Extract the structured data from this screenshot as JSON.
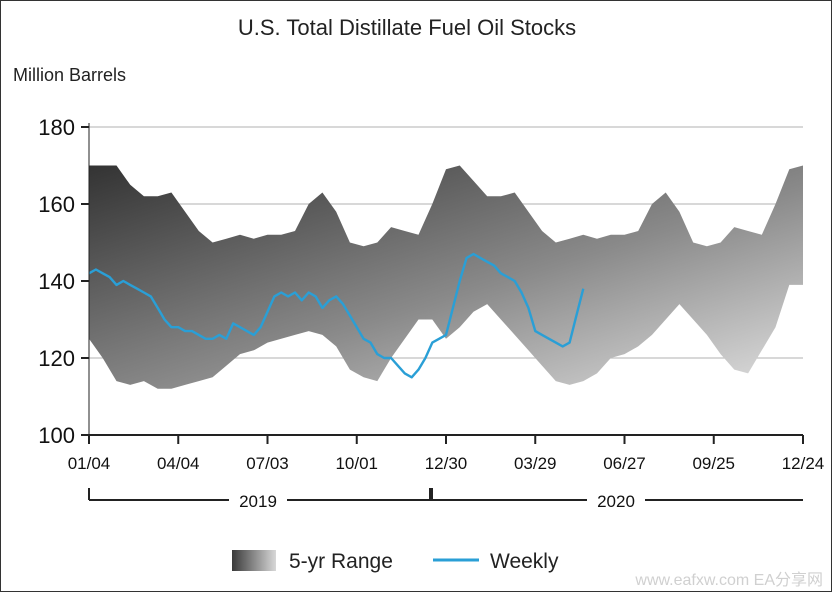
{
  "chart_data": {
    "type": "area",
    "title": "U.S. Total Distillate Fuel Oil Stocks",
    "ylabel": "Million Barrels",
    "ylim": [
      100,
      180
    ],
    "yticks": [
      "180",
      "160",
      "140",
      "120",
      "100"
    ],
    "ytick_values": [
      180,
      160,
      140,
      120,
      100
    ],
    "grid": true,
    "legend_position": "bottom",
    "x_tick_labels": [
      "01/04",
      "04/04",
      "07/03",
      "10/01",
      "12/30",
      "03/29",
      "06/27",
      "09/25",
      "12/24"
    ],
    "year_labels": [
      "2019",
      "2020"
    ],
    "series": [
      {
        "name": "5-yr Range",
        "kind": "range_band",
        "x_week": [
          0,
          2,
          4,
          6,
          8,
          10,
          12,
          14,
          16,
          18,
          20,
          22,
          24,
          26,
          28,
          30,
          32,
          34,
          36,
          38,
          40,
          42,
          44,
          46,
          48,
          50,
          52,
          54,
          56,
          58,
          60,
          62,
          64,
          66,
          68,
          70,
          72,
          74,
          76,
          78,
          80,
          82,
          84,
          86,
          88,
          90,
          92,
          94,
          96,
          98,
          100,
          102,
          104
        ],
        "upper": [
          170,
          170,
          170,
          165,
          162,
          162,
          163,
          158,
          153,
          150,
          151,
          152,
          151,
          152,
          152,
          153,
          160,
          163,
          158,
          150,
          149,
          150,
          154,
          153,
          152,
          160,
          169,
          170,
          166,
          162,
          162,
          163,
          158,
          153,
          150,
          151,
          152,
          151,
          152,
          152,
          153,
          160,
          163,
          158,
          150,
          149,
          150,
          154,
          153,
          152,
          160,
          169,
          170
        ],
        "lower": [
          125,
          120,
          114,
          113,
          114,
          112,
          112,
          113,
          114,
          115,
          118,
          121,
          122,
          124,
          125,
          126,
          127,
          126,
          123,
          117,
          115,
          114,
          120,
          125,
          130,
          130,
          125,
          128,
          132,
          134,
          130,
          126,
          122,
          118,
          114,
          113,
          114,
          116,
          120,
          121,
          123,
          126,
          130,
          134,
          130,
          126,
          121,
          117,
          116,
          122,
          128,
          139,
          139
        ]
      },
      {
        "name": "Weekly",
        "kind": "line",
        "color": "#2a9fd6",
        "x_week": [
          0,
          1,
          2,
          3,
          4,
          5,
          6,
          7,
          8,
          9,
          10,
          11,
          12,
          13,
          14,
          15,
          16,
          17,
          18,
          19,
          20,
          21,
          22,
          23,
          24,
          25,
          26,
          27,
          28,
          29,
          30,
          31,
          32,
          33,
          34,
          35,
          36,
          37,
          38,
          39,
          40,
          41,
          42,
          43,
          44,
          45,
          46,
          47,
          48,
          49,
          50,
          51,
          52,
          53,
          54,
          55,
          56,
          57,
          58,
          59,
          60,
          61,
          62,
          63,
          64,
          65,
          66,
          67,
          68,
          69,
          70,
          71,
          72
        ],
        "values": [
          142,
          143,
          142,
          141,
          139,
          140,
          139,
          138,
          137,
          136,
          133,
          130,
          128,
          128,
          127,
          127,
          126,
          125,
          125,
          126,
          125,
          129,
          128,
          127,
          126,
          128,
          132,
          136,
          137,
          136,
          137,
          135,
          137,
          136,
          133,
          135,
          136,
          134,
          131,
          128,
          125,
          124,
          121,
          120,
          120,
          118,
          116,
          115,
          117,
          120,
          124,
          125,
          126,
          133,
          140,
          146,
          147,
          146,
          145,
          144,
          142,
          141,
          140,
          137,
          133,
          127,
          126,
          125,
          124,
          123,
          124,
          131,
          138
        ]
      }
    ]
  },
  "legend": {
    "range_label": "5-yr Range",
    "weekly_label": "Weekly"
  },
  "colors": {
    "weekly_line": "#2a9fd6",
    "grid": "#c0c0c0",
    "axis": "#222222",
    "band_dark": "#3a3a3a",
    "band_light": "#dcdcdc"
  },
  "watermark": "www.eafxw.com  EA分享网"
}
